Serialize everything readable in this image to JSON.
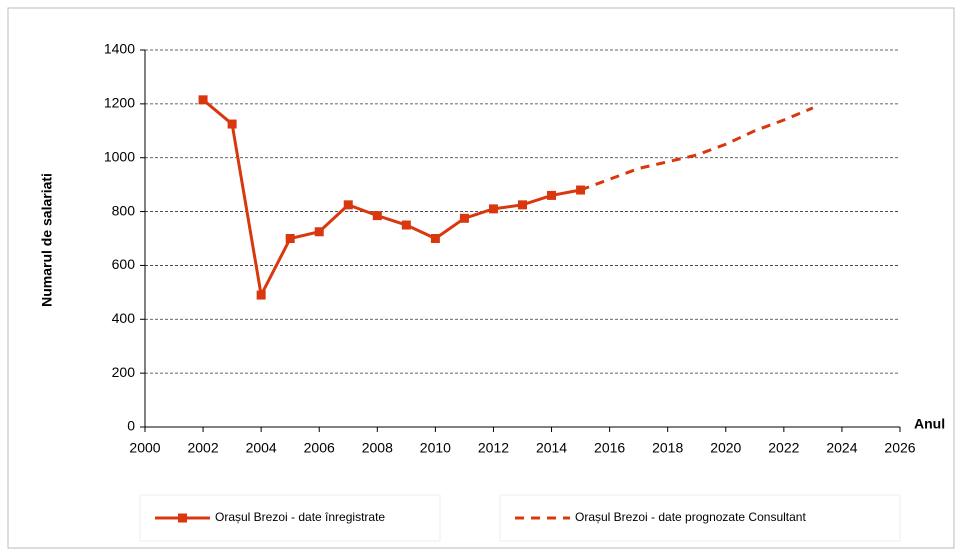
{
  "chart_data": {
    "type": "line",
    "y_label": "Numarul de salariati",
    "x_label": "Anul",
    "xlim": [
      2000,
      2026
    ],
    "xticks": [
      2000,
      2002,
      2004,
      2006,
      2008,
      2010,
      2012,
      2014,
      2016,
      2018,
      2020,
      2022,
      2024,
      2026
    ],
    "ylim": [
      0,
      1400
    ],
    "yticks": [
      0,
      200,
      400,
      600,
      800,
      1000,
      1200,
      1400
    ],
    "grid": true,
    "series": [
      {
        "name": "Orașul Brezoi - date înregistrate",
        "color": "#d9380f",
        "dash": false,
        "marker": "square",
        "x": [
          2002,
          2003,
          2004,
          2005,
          2006,
          2007,
          2008,
          2009,
          2010,
          2011,
          2012,
          2013,
          2014,
          2015
        ],
        "values": [
          1215,
          1125,
          490,
          700,
          725,
          825,
          785,
          750,
          700,
          775,
          810,
          825,
          860,
          880
        ]
      },
      {
        "name": "Orașul Brezoi - date prognozate Consultant",
        "color": "#d9380f",
        "dash": true,
        "marker": "none",
        "x": [
          2015,
          2016,
          2017,
          2018,
          2019,
          2020,
          2021,
          2022,
          2023
        ],
        "values": [
          880,
          920,
          960,
          985,
          1010,
          1050,
          1100,
          1140,
          1185
        ]
      }
    ]
  }
}
